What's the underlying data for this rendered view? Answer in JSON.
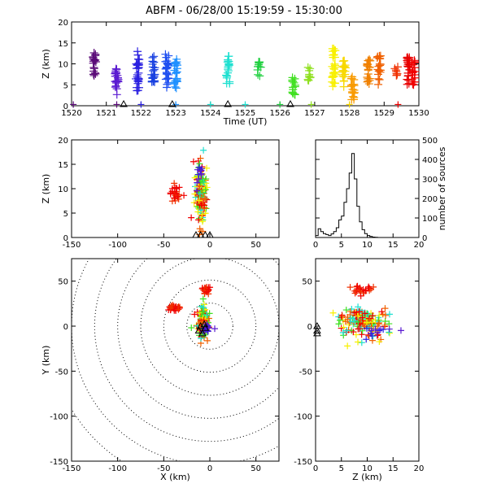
{
  "title": "ABFM - 06/28/00 15:19:59 - 15:30:00",
  "chart_data": [
    {
      "id": "time-height",
      "type": "scatter",
      "xlabel": "Time (UT)",
      "ylabel": "Z (km)",
      "xlim": [
        1520,
        1530
      ],
      "ylim": [
        0,
        20
      ],
      "xticks": [
        "1520",
        "1521",
        "1522",
        "1523",
        "1524",
        "1525",
        "1526",
        "1527",
        "1528",
        "1529",
        "1530"
      ],
      "yticks": [
        "0",
        "5",
        "10",
        "15",
        "20"
      ],
      "columns": [
        {
          "t": 1520.65,
          "zmin": 6.5,
          "zmax": 12.8,
          "c": "#5a0a78"
        },
        {
          "t": 1521.3,
          "zmin": 2.5,
          "zmax": 10.2,
          "c": "#5a1ad0"
        },
        {
          "t": 1521.9,
          "zmin": 3.5,
          "zmax": 13.0,
          "c": "#2a20e0"
        },
        {
          "t": 1522.35,
          "zmin": 5.0,
          "zmax": 12.0,
          "c": "#1840e0"
        },
        {
          "t": 1522.75,
          "zmin": 4.0,
          "zmax": 12.5,
          "c": "#2050f0"
        },
        {
          "t": 1523.0,
          "zmin": 4.0,
          "zmax": 11.8,
          "c": "#1e90ff"
        },
        {
          "t": 1524.5,
          "zmin": 5.0,
          "zmax": 12.0,
          "c": "#1ee0d0"
        },
        {
          "t": 1525.4,
          "zmin": 7.0,
          "zmax": 10.5,
          "c": "#20d040"
        },
        {
          "t": 1526.4,
          "zmin": 2.5,
          "zmax": 7.5,
          "c": "#40e020"
        },
        {
          "t": 1526.85,
          "zmin": 6.0,
          "zmax": 9.5,
          "c": "#90e020"
        },
        {
          "t": 1527.55,
          "zmin": 4.0,
          "zmax": 14.0,
          "c": "#f8f000"
        },
        {
          "t": 1527.85,
          "zmin": 4.5,
          "zmax": 11.0,
          "c": "#f8d800"
        },
        {
          "t": 1528.1,
          "zmin": 1.0,
          "zmax": 7.5,
          "c": "#f89a00"
        },
        {
          "t": 1528.55,
          "zmin": 4.5,
          "zmax": 11.5,
          "c": "#f08000"
        },
        {
          "t": 1528.85,
          "zmin": 5.0,
          "zmax": 12.0,
          "c": "#f06000"
        },
        {
          "t": 1529.35,
          "zmin": 7.0,
          "zmax": 9.5,
          "c": "#f03000"
        },
        {
          "t": 1529.7,
          "zmin": 4.5,
          "zmax": 12.0,
          "c": "#e80000"
        },
        {
          "t": 1529.85,
          "zmin": 5.0,
          "zmax": 11.0,
          "c": "#f00000"
        }
      ],
      "ground_points": [
        {
          "t": 1520.05,
          "c": "#5a0a78"
        },
        {
          "t": 1521.3,
          "c": "#5a0a78"
        },
        {
          "t": 1522.0,
          "c": "#2a20e0"
        },
        {
          "t": 1523.0,
          "c": "#1e90ff"
        },
        {
          "t": 1524.0,
          "c": "#1ee0d0"
        },
        {
          "t": 1525.0,
          "c": "#1ee0d0"
        },
        {
          "t": 1526.0,
          "c": "#20d040"
        },
        {
          "t": 1526.9,
          "c": "#90e020"
        },
        {
          "t": 1528.0,
          "c": "#f8d800"
        },
        {
          "t": 1529.4,
          "c": "#f00000"
        }
      ],
      "stations": [
        1521.5,
        1522.9,
        1524.5,
        1526.3
      ]
    },
    {
      "id": "xz-projection",
      "type": "scatter",
      "xlabel": "",
      "ylabel": "Z (km)",
      "xlim": [
        -150,
        75
      ],
      "ylim": [
        0,
        20
      ],
      "xticks": [
        "-150",
        "-100",
        "-50",
        "0",
        "50"
      ],
      "yticks": [
        "0",
        "5",
        "10",
        "15",
        "20"
      ],
      "clusters": [
        {
          "x": -10,
          "z": 9,
          "sx": 3,
          "sz": 3.2,
          "n": 140,
          "colors": [
            "#f00000",
            "#f06000",
            "#f8f000",
            "#40e020",
            "#1ee0d0"
          ]
        },
        {
          "x": -38,
          "z": 9,
          "sx": 3,
          "sz": 1,
          "n": 25,
          "colors": [
            "#f00000",
            "#f03000"
          ]
        },
        {
          "x": -12,
          "z": 13,
          "sx": 2,
          "sz": 1.2,
          "n": 12,
          "colors": [
            "#2a20e0",
            "#5a1ad0"
          ]
        }
      ],
      "stations": [
        -15,
        -10,
        -5,
        0
      ]
    },
    {
      "id": "histogram",
      "type": "bar",
      "xlabel": "",
      "ylabel": "number of sources",
      "xlim": [
        0,
        20
      ],
      "ylim": [
        0,
        500
      ],
      "xticks": [
        "0",
        "5",
        "10",
        "15",
        "20"
      ],
      "yticks": [
        "0",
        "100",
        "200",
        "300",
        "400",
        "500"
      ],
      "bin_width": 0.5,
      "values": [
        10,
        45,
        30,
        20,
        15,
        10,
        18,
        30,
        50,
        90,
        110,
        180,
        250,
        330,
        430,
        300,
        160,
        80,
        40,
        20,
        10,
        5,
        2,
        1,
        0,
        0,
        0,
        0,
        0,
        0,
        0,
        0,
        0,
        0,
        0,
        0,
        0,
        0,
        0,
        0
      ]
    },
    {
      "id": "plan-view",
      "type": "scatter",
      "xlabel": "X (km)",
      "ylabel": "Y (km)",
      "xlim": [
        -150,
        75
      ],
      "ylim": [
        -150,
        75
      ],
      "xticks": [
        "-150",
        "-100",
        "-50",
        "0",
        "50"
      ],
      "yticks": [
        "-150",
        "-100",
        "-50",
        "0",
        "50"
      ],
      "range_rings": [
        25,
        50,
        75,
        100,
        125,
        150,
        175
      ],
      "clusters": [
        {
          "x": -8,
          "y": 5,
          "sx": 3,
          "sy": 8,
          "n": 150,
          "colors": [
            "#f00000",
            "#f06000",
            "#f8f000",
            "#40e020",
            "#1ee0d0"
          ]
        },
        {
          "x": -5,
          "y": 40,
          "sx": 3,
          "sy": 2,
          "n": 25,
          "colors": [
            "#f00000",
            "#f03000"
          ]
        },
        {
          "x": -38,
          "y": 20,
          "sx": 4,
          "sy": 2,
          "n": 25,
          "colors": [
            "#f00000",
            "#f03000"
          ]
        },
        {
          "x": -3,
          "y": -2,
          "sx": 3,
          "sy": 3,
          "n": 15,
          "colors": [
            "#2a20e0",
            "#5a1ad0"
          ]
        }
      ],
      "stations": [
        {
          "x": -12,
          "y": -5
        },
        {
          "x": -8,
          "y": -8
        },
        {
          "x": -5,
          "y": -2
        },
        {
          "x": -10,
          "y": 0
        },
        {
          "x": -6,
          "y": 2
        }
      ]
    },
    {
      "id": "zy-projection",
      "type": "scatter",
      "xlabel": "Z (km)",
      "ylabel": "",
      "xlim": [
        0,
        20
      ],
      "ylim": [
        -150,
        75
      ],
      "xticks": [
        "0",
        "5",
        "10",
        "15",
        "20"
      ],
      "yticks": [
        "-150",
        "-100",
        "-50",
        "0",
        "50"
      ],
      "clusters": [
        {
          "z": 9,
          "y": 5,
          "sz": 2.5,
          "sy": 8,
          "n": 150,
          "colors": [
            "#f00000",
            "#f06000",
            "#f8f000",
            "#40e020",
            "#1ee0d0"
          ]
        },
        {
          "z": 9,
          "y": 40,
          "sz": 1.5,
          "sy": 2,
          "n": 25,
          "colors": [
            "#f00000",
            "#f03000"
          ]
        },
        {
          "z": 12,
          "y": -5,
          "sz": 2,
          "sy": 4,
          "n": 12,
          "colors": [
            "#2a20e0",
            "#5a1ad0"
          ]
        }
      ],
      "stations": [
        {
          "z": 0.3,
          "y": -5
        },
        {
          "z": 0.3,
          "y": -8
        },
        {
          "z": 0.3,
          "y": 0
        }
      ]
    }
  ]
}
